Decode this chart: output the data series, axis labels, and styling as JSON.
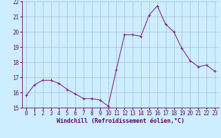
{
  "x": [
    0,
    1,
    2,
    3,
    4,
    5,
    6,
    7,
    8,
    9,
    10,
    11,
    12,
    13,
    14,
    15,
    16,
    17,
    18,
    19,
    20,
    21,
    22,
    23
  ],
  "y": [
    15.8,
    16.5,
    16.8,
    16.8,
    16.6,
    16.2,
    15.9,
    15.6,
    15.6,
    15.5,
    15.1,
    17.5,
    19.8,
    19.8,
    19.7,
    21.1,
    21.7,
    20.5,
    20.0,
    18.9,
    18.1,
    17.7,
    17.8,
    17.4
  ],
  "line_color": "#882288",
  "marker": "+",
  "bg_color": "#cceeff",
  "grid_color": "#aabbcc",
  "xlabel": "Windchill (Refroidissement éolien,°C)",
  "ylim": [
    15,
    22
  ],
  "xlim": [
    -0.5,
    23.5
  ],
  "yticks": [
    15,
    16,
    17,
    18,
    19,
    20,
    21,
    22
  ],
  "xticks": [
    0,
    1,
    2,
    3,
    4,
    5,
    6,
    7,
    8,
    9,
    10,
    11,
    12,
    13,
    14,
    15,
    16,
    17,
    18,
    19,
    20,
    21,
    22,
    23
  ],
  "xlabel_color": "#660066",
  "label_fontsize": 6.0,
  "tick_fontsize": 5.5,
  "spine_color": "#660066"
}
